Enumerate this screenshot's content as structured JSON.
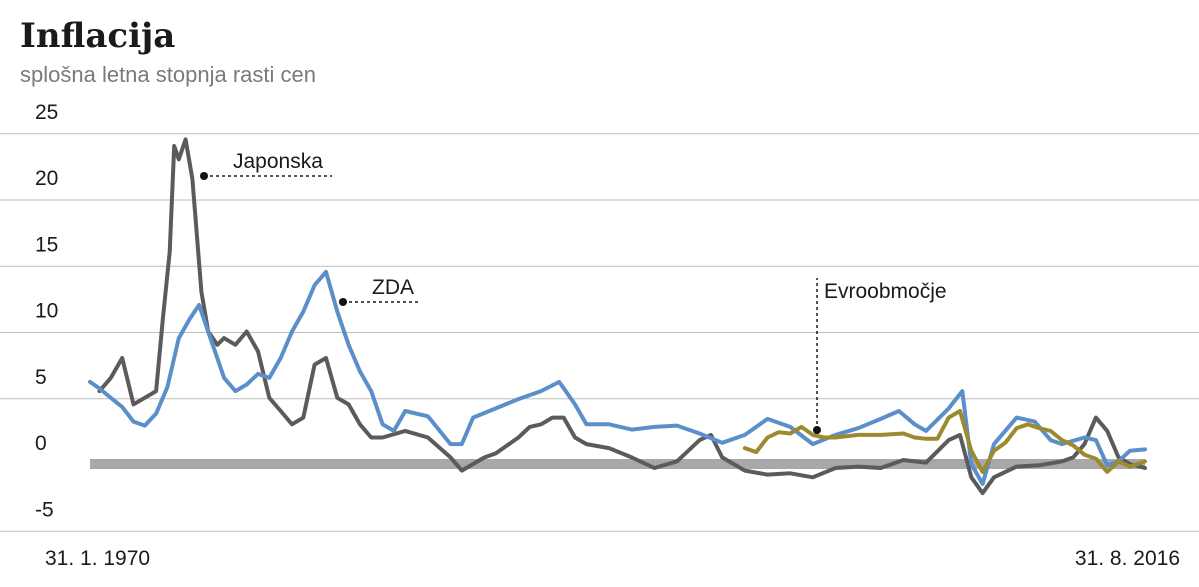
{
  "chart_data": {
    "type": "line",
    "title": "Inflacija",
    "subtitle": "splošna letna stopnja rasti cen",
    "ylim": [
      -5,
      25
    ],
    "yticks": [
      25,
      20,
      15,
      10,
      5,
      0,
      -5
    ],
    "xlim": [
      1970.08,
      2016.67
    ],
    "x_start_label": "31. 1. 1970",
    "x_end_label": "31. 8. 2016",
    "series": [
      {
        "name": "Japonska",
        "color": "#5b5b5b",
        "x": [
          1970.5,
          1971.0,
          1971.5,
          1972.0,
          1972.5,
          1973.0,
          1973.3,
          1973.6,
          1973.8,
          1974.0,
          1974.3,
          1974.6,
          1975.0,
          1975.3,
          1975.7,
          1976.0,
          1976.5,
          1977.0,
          1977.5,
          1978.0,
          1978.5,
          1979.0,
          1979.5,
          1980.0,
          1980.5,
          1981.0,
          1981.5,
          1982.0,
          1982.5,
          1983.0,
          1984.0,
          1985.0,
          1986.0,
          1986.5,
          1987.0,
          1987.5,
          1988.0,
          1989.0,
          1989.5,
          1990.0,
          1990.5,
          1991.0,
          1991.5,
          1992.0,
          1993.0,
          1994.0,
          1995.0,
          1996.0,
          1997.0,
          1997.5,
          1998.0,
          1999.0,
          2000.0,
          2001.0,
          2002.0,
          2003.0,
          2004.0,
          2005.0,
          2006.0,
          2007.0,
          2008.0,
          2008.5,
          2009.0,
          2009.5,
          2010.0,
          2011.0,
          2012.0,
          2013.0,
          2013.5,
          2014.0,
          2014.5,
          2015.0,
          2015.5,
          2016.0,
          2016.67
        ],
        "values": [
          5.5,
          6.5,
          8.0,
          4.5,
          5.0,
          5.5,
          11.0,
          16.0,
          24.0,
          23.0,
          24.5,
          21.5,
          13.0,
          10.0,
          9.0,
          9.5,
          9.0,
          10.0,
          8.5,
          5.0,
          4.0,
          3.0,
          3.5,
          7.5,
          8.0,
          5.0,
          4.5,
          3.0,
          2.0,
          2.0,
          2.5,
          2.0,
          0.5,
          -0.5,
          0.0,
          0.5,
          0.8,
          2.0,
          2.8,
          3.0,
          3.5,
          3.5,
          2.0,
          1.5,
          1.2,
          0.5,
          -0.3,
          0.2,
          1.8,
          2.2,
          0.5,
          -0.5,
          -0.8,
          -0.7,
          -1.0,
          -0.3,
          -0.2,
          -0.3,
          0.3,
          0.1,
          1.8,
          2.2,
          -1.0,
          -2.2,
          -1.0,
          -0.2,
          -0.1,
          0.2,
          0.5,
          1.5,
          3.5,
          2.5,
          0.5,
          0.0,
          -0.3
        ]
      },
      {
        "name": "ZDA",
        "color": "#5b8fc9",
        "x": [
          1970.08,
          1970.5,
          1971.0,
          1971.5,
          1972.0,
          1972.5,
          1973.0,
          1973.5,
          1974.0,
          1974.5,
          1974.9,
          1975.5,
          1976.0,
          1976.5,
          1977.0,
          1977.5,
          1978.0,
          1978.5,
          1979.0,
          1979.5,
          1980.0,
          1980.5,
          1981.0,
          1981.5,
          1982.0,
          1982.5,
          1983.0,
          1983.5,
          1984.0,
          1985.0,
          1986.0,
          1986.5,
          1987.0,
          1988.0,
          1989.0,
          1990.0,
          1990.8,
          1991.5,
          1992.0,
          1993.0,
          1994.0,
          1995.0,
          1996.0,
          1997.0,
          1998.0,
          1999.0,
          2000.0,
          2001.0,
          2002.0,
          2003.0,
          2004.0,
          2005.0,
          2005.8,
          2006.5,
          2007.0,
          2008.0,
          2008.6,
          2009.0,
          2009.5,
          2010.0,
          2011.0,
          2011.8,
          2012.5,
          2013.0,
          2014.0,
          2014.5,
          2015.0,
          2015.5,
          2016.0,
          2016.67
        ],
        "values": [
          6.2,
          5.7,
          5.0,
          4.3,
          3.2,
          2.9,
          3.8,
          5.8,
          9.5,
          11.0,
          12.0,
          9.0,
          6.5,
          5.5,
          6.0,
          6.8,
          6.5,
          8.0,
          10.0,
          11.5,
          13.5,
          14.5,
          11.5,
          9.0,
          7.0,
          5.5,
          3.0,
          2.5,
          4.0,
          3.6,
          1.5,
          1.5,
          3.5,
          4.2,
          4.9,
          5.5,
          6.2,
          4.5,
          3.0,
          3.0,
          2.6,
          2.8,
          2.9,
          2.3,
          1.6,
          2.2,
          3.4,
          2.8,
          1.5,
          2.2,
          2.7,
          3.4,
          4.0,
          3.0,
          2.5,
          4.2,
          5.5,
          0.0,
          -1.5,
          1.5,
          3.5,
          3.2,
          1.8,
          1.5,
          2.0,
          1.8,
          -0.1,
          0.2,
          1.0,
          1.1
        ]
      },
      {
        "name": "Evroobmočje",
        "color": "#9c8a2e",
        "x": [
          1999.0,
          1999.5,
          2000.0,
          2000.5,
          2001.0,
          2001.5,
          2002.0,
          2002.5,
          2003.0,
          2004.0,
          2005.0,
          2006.0,
          2006.5,
          2007.0,
          2007.5,
          2008.0,
          2008.5,
          2009.0,
          2009.5,
          2010.0,
          2010.5,
          2011.0,
          2011.5,
          2012.0,
          2012.5,
          2013.0,
          2013.5,
          2014.0,
          2014.5,
          2015.0,
          2015.5,
          2016.0,
          2016.67
        ],
        "values": [
          1.2,
          0.9,
          2.0,
          2.4,
          2.3,
          2.8,
          2.2,
          2.0,
          2.0,
          2.2,
          2.2,
          2.3,
          2.0,
          1.9,
          1.9,
          3.5,
          4.0,
          1.0,
          -0.6,
          1.0,
          1.6,
          2.7,
          3.0,
          2.7,
          2.5,
          1.8,
          1.4,
          0.7,
          0.4,
          -0.6,
          0.2,
          -0.2,
          0.2
        ]
      }
    ],
    "annotations": [
      {
        "text": "Japonska"
      },
      {
        "text": "ZDA"
      },
      {
        "text": "Evroobmočje"
      }
    ]
  }
}
